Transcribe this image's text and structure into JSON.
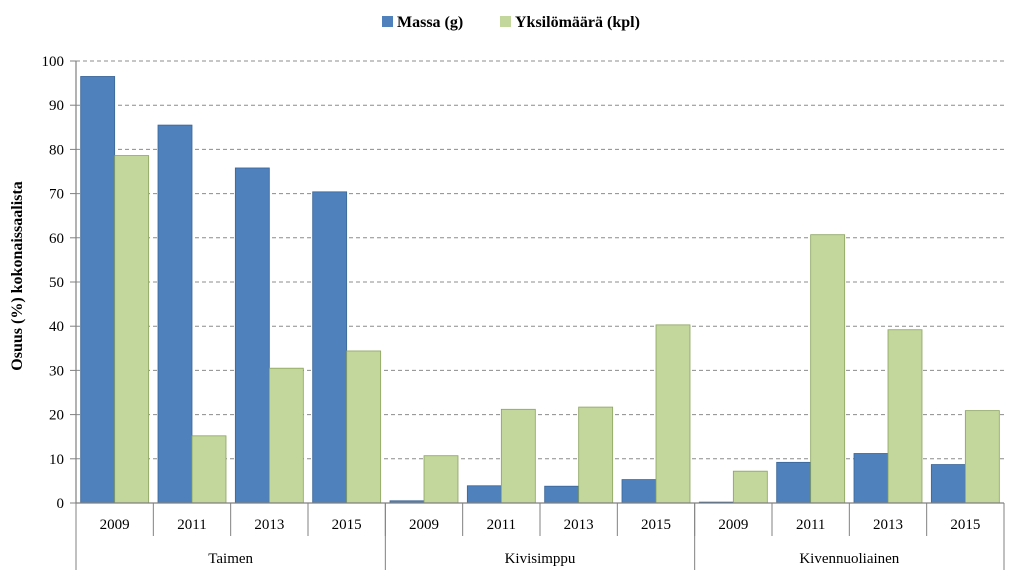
{
  "chart_data": {
    "type": "bar",
    "title": "",
    "xlabel": "",
    "ylabel": "Osuus (%) kokonaissaalista",
    "ylim": [
      0,
      100
    ],
    "yticks": [
      0,
      10,
      20,
      30,
      40,
      50,
      60,
      70,
      80,
      90,
      100
    ],
    "grid": true,
    "legend_position": "top-center",
    "groups": [
      "Taimen",
      "Kivisimppu",
      "Kivennuoliainen"
    ],
    "categories": [
      "2009",
      "2011",
      "2013",
      "2015",
      "2009",
      "2011",
      "2013",
      "2015",
      "2009",
      "2011",
      "2013",
      "2015"
    ],
    "series": [
      {
        "name": "Massa (g)",
        "color": "#4f81bd",
        "values": [
          96.5,
          85.5,
          75.8,
          70.4,
          0.5,
          3.9,
          3.8,
          5.3,
          0.2,
          9.2,
          11.2,
          8.7
        ]
      },
      {
        "name": "Yksilömäärä (kpl)",
        "color": "#c3d69b",
        "values": [
          78.6,
          15.2,
          30.5,
          34.4,
          10.7,
          21.2,
          21.7,
          40.3,
          7.2,
          60.7,
          39.2,
          20.9
        ]
      }
    ]
  }
}
